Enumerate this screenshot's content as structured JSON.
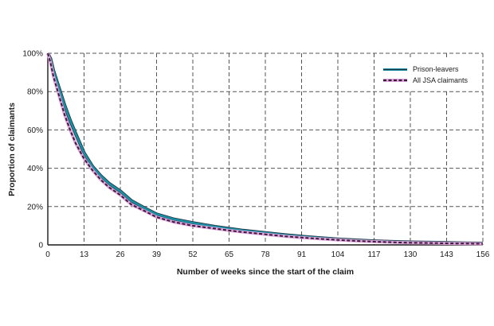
{
  "chart_data": {
    "type": "line",
    "xlabel": "Number of weeks since the start of the claim",
    "ylabel": "Proportion of claimants",
    "xlim": [
      0,
      156
    ],
    "ylim": [
      0,
      100
    ],
    "x_ticks": [
      0,
      13,
      26,
      39,
      52,
      65,
      78,
      91,
      104,
      117,
      130,
      143,
      156
    ],
    "y_ticks": [
      0,
      20,
      40,
      60,
      80,
      100
    ],
    "y_tick_labels": [
      "0",
      "20%",
      "40%",
      "60%",
      "80%",
      "100%"
    ],
    "grid": true,
    "grid_style": "dashed",
    "legend_position": "top-right",
    "series": [
      {
        "name": "Prison-leavers",
        "color": "#1a8fa3",
        "style": "solid",
        "x": [
          0,
          1,
          2,
          4,
          6,
          8,
          10,
          13,
          16,
          19,
          22,
          26,
          30,
          35,
          39,
          45,
          52,
          60,
          65,
          70,
          78,
          85,
          91,
          98,
          104,
          110,
          117,
          125,
          130,
          140,
          143,
          150,
          156
        ],
        "y": [
          100,
          97,
          91,
          82,
          73,
          65,
          58,
          48,
          41,
          36,
          32,
          28,
          23,
          19,
          16,
          13.5,
          11.5,
          9.5,
          8.5,
          7.5,
          6.3,
          5.2,
          4.4,
          3.6,
          3,
          2.5,
          2,
          1.6,
          1.4,
          1.2,
          1.1,
          0.9,
          0.8
        ]
      },
      {
        "name": "All JSA claimants",
        "color": "#3a1a3d",
        "style": "dashed",
        "x": [
          0,
          1,
          2,
          4,
          6,
          8,
          10,
          13,
          16,
          19,
          22,
          26,
          30,
          35,
          39,
          45,
          52,
          60,
          65,
          70,
          78,
          85,
          91,
          98,
          104,
          110,
          117,
          125,
          130,
          140,
          143,
          150,
          156
        ],
        "y": [
          100,
          95,
          88,
          78,
          68,
          60,
          53,
          45,
          39,
          34,
          30,
          26,
          21,
          17.5,
          14.5,
          12,
          10,
          8.5,
          7.5,
          6.7,
          5.5,
          4.5,
          3.8,
          3.1,
          2.6,
          2.1,
          1.7,
          1.3,
          1.1,
          0.9,
          0.8,
          0.7,
          0.6
        ]
      }
    ]
  }
}
